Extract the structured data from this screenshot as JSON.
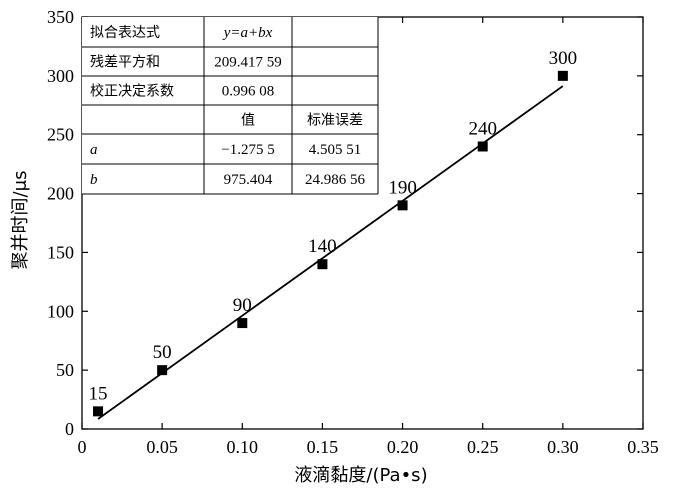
{
  "chart_data": {
    "type": "scatter",
    "xlabel": "液滴黏度/(Pa•s)",
    "ylabel": "聚并时间/μs",
    "xlim": [
      0,
      0.35
    ],
    "ylim": [
      0,
      350
    ],
    "x_ticks": [
      "0",
      "0.05",
      "0.10",
      "0.15",
      "0.20",
      "0.25",
      "0.30",
      "0.35"
    ],
    "y_ticks": [
      "0",
      "50",
      "100",
      "150",
      "200",
      "250",
      "300",
      "350"
    ],
    "series": [
      {
        "x": [
          0.01,
          0.05,
          0.1,
          0.15,
          0.2,
          0.25,
          0.3
        ],
        "y": [
          15,
          50,
          90,
          140,
          190,
          240,
          300
        ],
        "labels": [
          "15",
          "50",
          "90",
          "140",
          "190",
          "240",
          "300"
        ],
        "marker": "square",
        "color": "#000000"
      }
    ],
    "fit_line": {
      "a": -1.2755,
      "b": 975.404,
      "x_range": [
        0.01,
        0.3
      ],
      "color": "#000000"
    },
    "grid": false,
    "fit_table": {
      "rows": [
        [
          "拟合表达式",
          "y=a+bx",
          ""
        ],
        [
          "残差平方和",
          "209.417 59",
          ""
        ],
        [
          "校正决定系数",
          "0.996 08",
          ""
        ],
        [
          "",
          "值",
          "标准误差"
        ],
        [
          "a",
          "−1.275 5",
          "4.505 51"
        ],
        [
          "b",
          "975.404",
          "24.986 56"
        ]
      ]
    }
  }
}
